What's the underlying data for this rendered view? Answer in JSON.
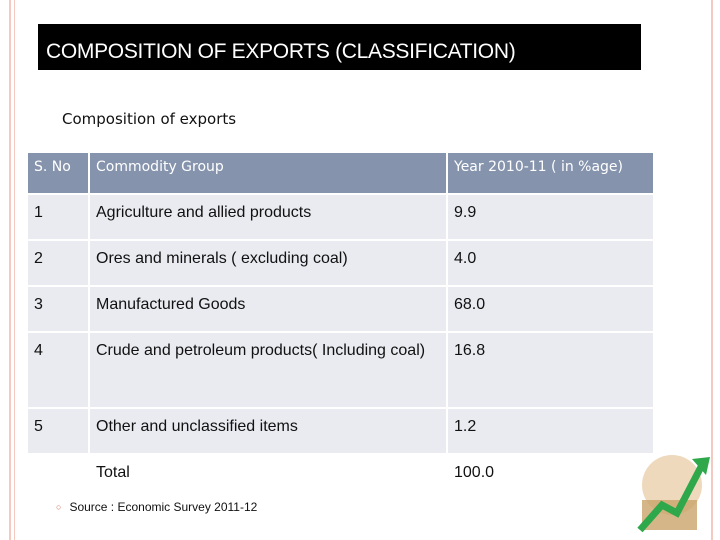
{
  "header": {
    "title": "COMPOSITION OF EXPORTS (CLASSIFICATION)",
    "subtitle": "Composition of exports"
  },
  "table": {
    "columns": [
      "S. No",
      "Commodity Group",
      "Year 2010-11 ( in %age)"
    ],
    "rows": [
      [
        "1",
        "Agriculture and allied products",
        "9.9"
      ],
      [
        "2",
        "Ores and minerals ( excluding coal)",
        "4.0"
      ],
      [
        "3",
        "Manufactured Goods",
        "68.0"
      ],
      [
        "4",
        "Crude and petroleum products( Including coal)",
        "16.8"
      ],
      [
        "5",
        "Other and unclassified items",
        "1.2"
      ],
      [
        null,
        "Total",
        "100.0"
      ]
    ]
  },
  "source": "Source : Economic Survey 2011-12"
}
